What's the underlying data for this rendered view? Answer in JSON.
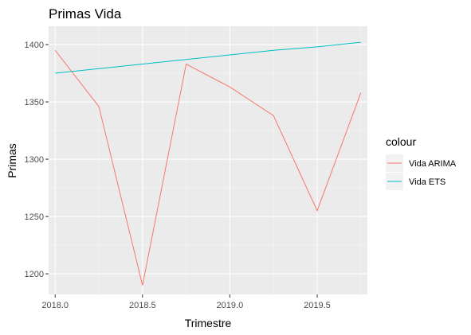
{
  "chart_data": {
    "type": "line",
    "title": "Primas Vida",
    "xlabel": "Trimestre",
    "ylabel": "Primas",
    "xlim": [
      1997.96,
      2019.79
    ],
    "ylim": [
      1182,
      1416
    ],
    "x_ticks": [
      2018.0,
      2018.5,
      2019.0,
      2019.5
    ],
    "x_tick_labels": [
      "2018.0",
      "2018.5",
      "2019.0",
      "2019.5"
    ],
    "y_ticks": [
      1200,
      1250,
      1300,
      1350,
      1400
    ],
    "y_tick_labels": [
      "1200",
      "1250",
      "1300",
      "1350",
      "1400"
    ],
    "grid": true,
    "legend": {
      "title": "colour",
      "placement": "right"
    },
    "series": [
      {
        "name": "Vida ARIMA",
        "color": "#F8766D",
        "x": [
          2018.0,
          2018.25,
          2018.5,
          2018.75,
          2019.0,
          2019.25,
          2019.5,
          2019.75
        ],
        "y": [
          1395,
          1346,
          1190,
          1383,
          1363,
          1338,
          1255,
          1358
        ]
      },
      {
        "name": "Vida ETS",
        "color": "#00BFC4",
        "x": [
          2018.0,
          2018.25,
          2018.5,
          2018.75,
          2019.0,
          2019.25,
          2019.5,
          2019.75
        ],
        "y": [
          1375,
          1379,
          1383,
          1387,
          1391,
          1395,
          1398,
          1402
        ]
      }
    ]
  },
  "colors": {
    "panel_bg": "#EBEBEB",
    "grid_major": "#FFFFFF",
    "grid_minor": "#F5F5F5",
    "legend_key_bg": "#F2F2F2"
  }
}
